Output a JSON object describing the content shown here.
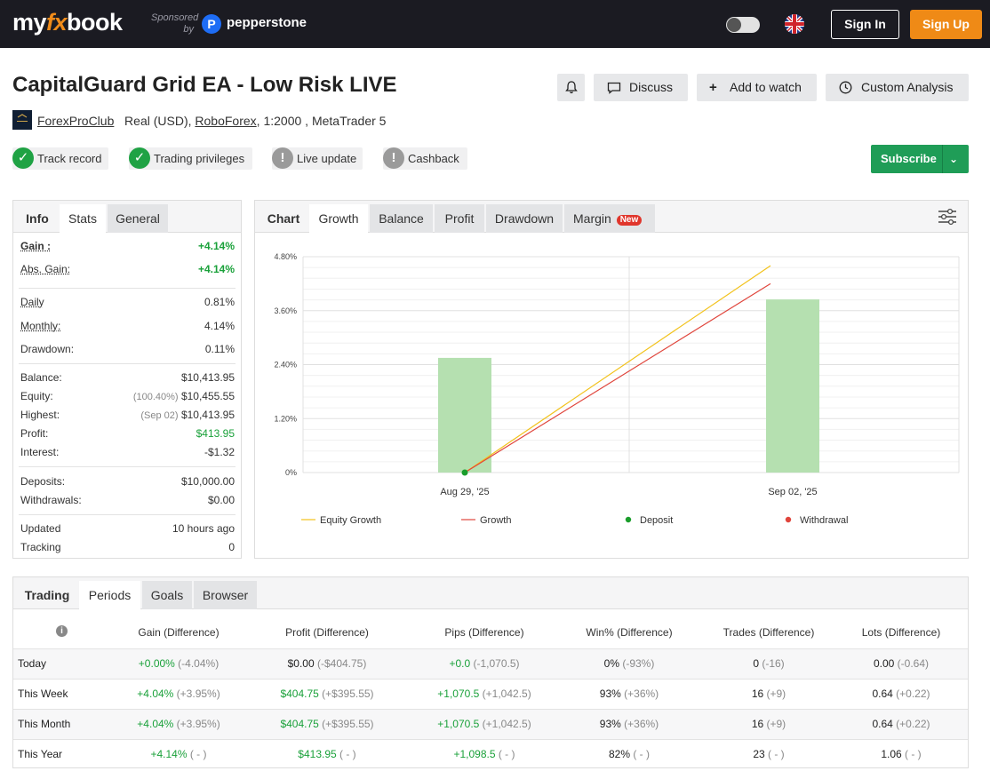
{
  "header": {
    "logo_my": "my",
    "logo_fx": "fx",
    "logo_book": "book",
    "sponsored": "Sponsored",
    "by": "by",
    "sponsor_name": "pepperstone",
    "sign_in": "Sign In",
    "sign_up": "Sign Up"
  },
  "system": {
    "title": "CapitalGuard Grid EA - Low Risk LIVE",
    "owner": "ForexProClub",
    "account_type": "Real (USD),",
    "broker": "RoboForex",
    "leverage_platform": ", 1:2000 , MetaTrader 5",
    "buttons": {
      "discuss": "Discuss",
      "watch": "Add to watch",
      "analysis": "Custom Analysis"
    },
    "badges": [
      {
        "label": "Track record",
        "status": "ok"
      },
      {
        "label": "Trading privileges",
        "status": "ok"
      },
      {
        "label": "Live update",
        "status": "warn"
      },
      {
        "label": "Cashback",
        "status": "warn"
      }
    ],
    "subscribe": "Subscribe"
  },
  "stats_panel": {
    "tabs": [
      "Info",
      "Stats",
      "General"
    ],
    "gain_label": "Gain :",
    "gain_value": "+4.14%",
    "abs_gain_label": "Abs. Gain:",
    "abs_gain_value": "+4.14%",
    "daily_label": "Daily",
    "daily_value": "0.81%",
    "monthly_label": "Monthly:",
    "monthly_value": "4.14%",
    "drawdown_label": "Drawdown:",
    "drawdown_value": "0.11%",
    "balance_label": "Balance:",
    "balance_value": "$10,413.95",
    "equity_label": "Equity:",
    "equity_note": "(100.40%)",
    "equity_value": "$10,455.55",
    "highest_label": "Highest:",
    "highest_note": "(Sep 02)",
    "highest_value": "$10,413.95",
    "profit_label": "Profit:",
    "profit_value": "$413.95",
    "interest_label": "Interest:",
    "interest_value": "-$1.32",
    "deposits_label": "Deposits:",
    "deposits_value": "$10,000.00",
    "withdrawals_label": "Withdrawals:",
    "withdrawals_value": "$0.00",
    "updated_label": "Updated",
    "updated_value": "10 hours ago",
    "tracking_label": "Tracking",
    "tracking_value": "0"
  },
  "chart_panel": {
    "tabs": [
      "Chart",
      "Growth",
      "Balance",
      "Profit",
      "Drawdown",
      "Margin"
    ],
    "new_badge": "New",
    "legend": [
      "Equity Growth",
      "Growth",
      "Deposit",
      "Withdrawal"
    ],
    "colors": {
      "equity": "#f2c21b",
      "growth": "#e0453c",
      "deposit": "#1a9d2b",
      "withdrawal": "#e0453c",
      "bar": "#b5e0b0"
    }
  },
  "chart_data": {
    "type": "line",
    "x": [
      "Aug 29, '25",
      "Sep 02, '25"
    ],
    "y_ticks": [
      "0%",
      "1.20%",
      "2.40%",
      "3.60%",
      "4.80%"
    ],
    "ylim": [
      0,
      4.8
    ],
    "series": [
      {
        "name": "Equity Growth",
        "values": [
          0,
          4.6
        ]
      },
      {
        "name": "Growth",
        "values": [
          0,
          4.2
        ]
      }
    ],
    "bars": [
      2.55,
      3.85
    ],
    "deposit_points": [
      {
        "x": "Aug 29, '25",
        "y": 0
      }
    ],
    "grid": true,
    "legend_position": "bottom"
  },
  "periods_panel": {
    "tabs": [
      "Trading",
      "Periods",
      "Goals",
      "Browser"
    ],
    "columns": [
      "Gain (Difference)",
      "Profit (Difference)",
      "Pips (Difference)",
      "Win% (Difference)",
      "Trades (Difference)",
      "Lots (Difference)"
    ],
    "rows": [
      {
        "period": "Today",
        "cells": [
          [
            "+0.00%",
            "(-4.04%)"
          ],
          [
            "$0.00",
            "(-$404.75)"
          ],
          [
            "+0.0",
            "(-1,070.5)"
          ],
          [
            "0%",
            "(-93%)"
          ],
          [
            "0",
            "(-16)"
          ],
          [
            "0.00",
            "(-0.64)"
          ]
        ]
      },
      {
        "period": "This Week",
        "cells": [
          [
            "+4.04%",
            "(+3.95%)"
          ],
          [
            "$404.75",
            "(+$395.55)"
          ],
          [
            "+1,070.5",
            "(+1,042.5)"
          ],
          [
            "93%",
            "(+36%)"
          ],
          [
            "16",
            "(+9)"
          ],
          [
            "0.64",
            "(+0.22)"
          ]
        ]
      },
      {
        "period": "This Month",
        "cells": [
          [
            "+4.04%",
            "(+3.95%)"
          ],
          [
            "$404.75",
            "(+$395.55)"
          ],
          [
            "+1,070.5",
            "(+1,042.5)"
          ],
          [
            "93%",
            "(+36%)"
          ],
          [
            "16",
            "(+9)"
          ],
          [
            "0.64",
            "(+0.22)"
          ]
        ]
      },
      {
        "period": "This Year",
        "cells": [
          [
            "+4.14%",
            "( - )"
          ],
          [
            "$413.95",
            "( - )"
          ],
          [
            "+1,098.5",
            "( - )"
          ],
          [
            "82%",
            "( - )"
          ],
          [
            "23",
            "( - )"
          ],
          [
            "1.06",
            "( - )"
          ]
        ]
      }
    ]
  }
}
